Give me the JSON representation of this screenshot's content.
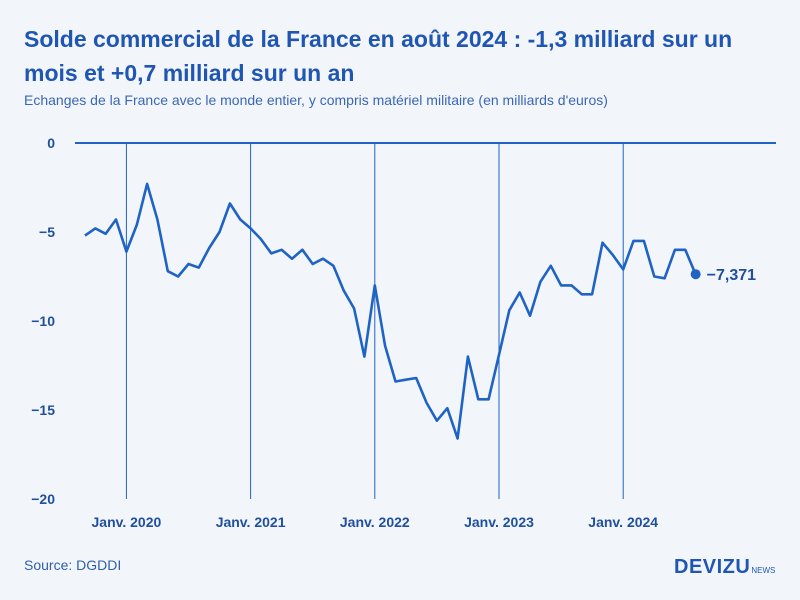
{
  "title": "Solde commercial de la France en août 2024 : -1,3 milliard sur un mois et +0,7 milliard sur un an",
  "subtitle": "Echanges de la France avec le monde entier, y compris matériel militaire (en milliards d'euros)",
  "source": "Source: DGDDI",
  "brand": {
    "main": "DEVIZU",
    "sub": "NEWS"
  },
  "colors": {
    "line": "#1f63c4",
    "axis": "#1f63c4",
    "text": "#1f4f9e",
    "title": "#1f56b3",
    "background": "#f2f6fb"
  },
  "chart_data": {
    "type": "line",
    "title": "Solde commercial de la France",
    "ylabel": "milliards d'euros",
    "ylim": [
      -20,
      0
    ],
    "yticks": [
      0,
      -5,
      -10,
      -15,
      -20
    ],
    "ytick_labels": [
      "0",
      "−5",
      "−10",
      "−15",
      "−20"
    ],
    "xticks": [
      {
        "label": "Janv. 2020",
        "index": 4
      },
      {
        "label": "Janv. 2021",
        "index": 16
      },
      {
        "label": "Janv. 2022",
        "index": 28
      },
      {
        "label": "Janv. 2023",
        "index": 40
      },
      {
        "label": "Janv. 2024",
        "index": 52
      }
    ],
    "start": "2019-09",
    "end": "2024-08",
    "series": [
      {
        "name": "Solde commercial",
        "values": [
          -5.2,
          -4.8,
          -5.1,
          -4.3,
          -6.1,
          -4.6,
          -2.3,
          -4.3,
          -7.2,
          -7.5,
          -6.8,
          -7.0,
          -5.9,
          -5.0,
          -3.4,
          -4.3,
          -4.8,
          -5.4,
          -6.2,
          -6.0,
          -6.5,
          -6.0,
          -6.8,
          -6.5,
          -6.9,
          -8.3,
          -9.3,
          -12.0,
          -8.0,
          -11.4,
          -13.4,
          -13.3,
          -13.2,
          -14.6,
          -15.6,
          -14.9,
          -16.6,
          -12.0,
          -14.4,
          -14.4,
          -11.9,
          -9.4,
          -8.4,
          -9.7,
          -7.8,
          -6.9,
          -8.0,
          -8.0,
          -8.5,
          -8.5,
          -5.6,
          -6.3,
          -7.1,
          -5.5,
          -5.5,
          -7.5,
          -7.6,
          -6.0,
          -6.0,
          -7.371
        ]
      }
    ],
    "end_label": "−7,371"
  }
}
